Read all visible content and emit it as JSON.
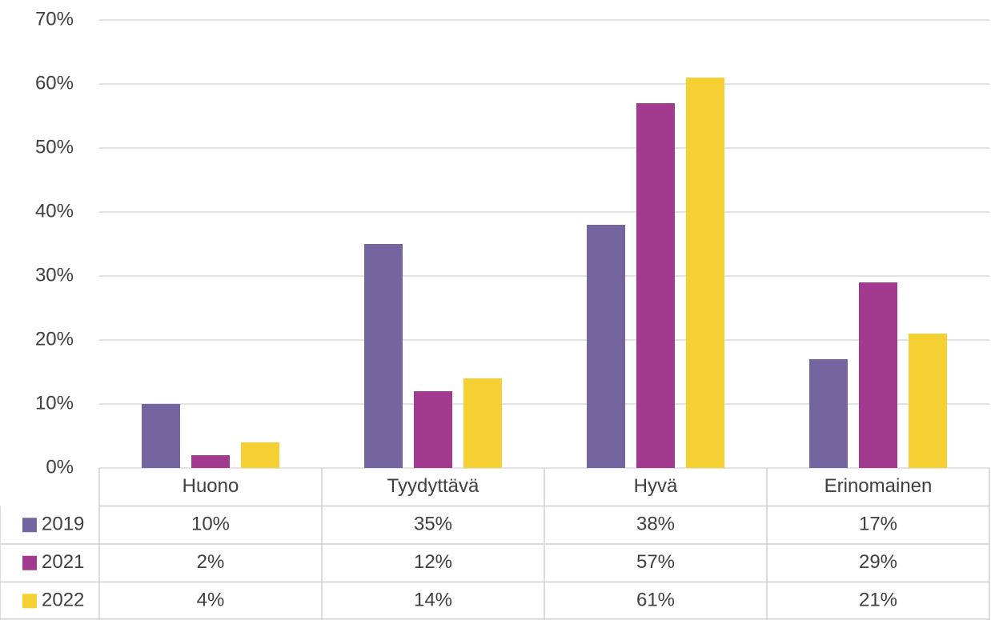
{
  "chart_data": {
    "type": "bar",
    "categories": [
      "Huono",
      "Tyydyttävä",
      "Hyvä",
      "Erinomainen"
    ],
    "series": [
      {
        "name": "2019",
        "color": "#7464a0",
        "values": [
          10,
          35,
          38,
          17
        ],
        "value_labels": [
          "10%",
          "35%",
          "38%",
          "17%"
        ]
      },
      {
        "name": "2021",
        "color": "#a23b8f",
        "values": [
          2,
          12,
          57,
          29
        ],
        "value_labels": [
          "2%",
          "12%",
          "57%",
          "29%"
        ]
      },
      {
        "name": "2022",
        "color": "#f5d033",
        "values": [
          4,
          14,
          61,
          21
        ],
        "value_labels": [
          "4%",
          "14%",
          "61%",
          "21%"
        ]
      }
    ],
    "ylim": [
      0,
      70
    ],
    "yticks": [
      {
        "value": 0,
        "label": "0%"
      },
      {
        "value": 10,
        "label": "10%"
      },
      {
        "value": 20,
        "label": "20%"
      },
      {
        "value": 30,
        "label": "30%"
      },
      {
        "value": 40,
        "label": "40%"
      },
      {
        "value": 50,
        "label": "50%"
      },
      {
        "value": 60,
        "label": "60%"
      },
      {
        "value": 70,
        "label": "70%"
      }
    ],
    "grid": true
  }
}
